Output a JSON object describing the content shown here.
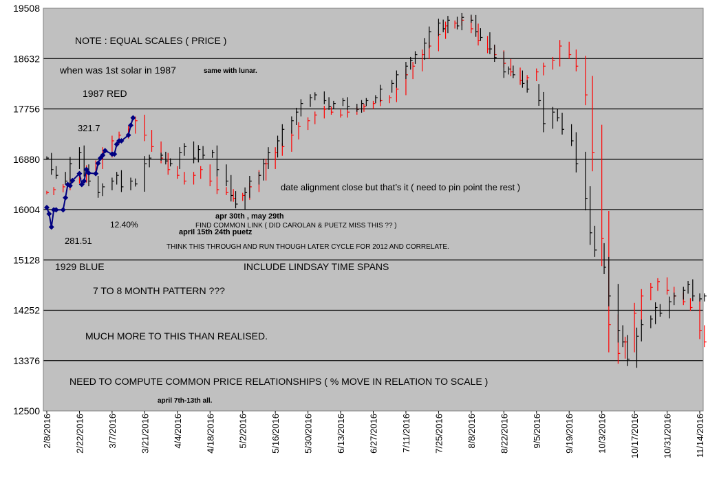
{
  "chart_data": {
    "type": "line",
    "title": "",
    "xlabel": "",
    "ylabel": "",
    "ylim": [
      12500,
      19508
    ],
    "grid": true,
    "yticks": [
      12500,
      13376,
      14252,
      15128,
      16004,
      16880,
      17756,
      18632,
      19508
    ],
    "xticks": [
      "2/8/2016",
      "2/22/2016",
      "3/7/2016",
      "3/21/2016",
      "4/4/2016",
      "4/18/2016",
      "5/2/2016",
      "5/16/2016",
      "5/30/2016",
      "6/13/2016",
      "6/27/2016",
      "7/11/2016",
      "7/25/2016",
      "8/8/2016",
      "8/22/2016",
      "9/5/2016",
      "9/19/2016",
      "10/3/2016",
      "10/17/2016",
      "10/31/2016",
      "11/14/2016"
    ],
    "colors": {
      "plot_bg": "#c0c0c0",
      "grid": "#000000",
      "black_series": "#000000",
      "red_series": "#ff0000",
      "blue_series": "#000080"
    },
    "series": [
      {
        "name": "1929 BLUE",
        "color": "#000080",
        "marker": "diamond",
        "x": [
          "2/8/2016",
          "2/9/2016",
          "2/10/2016",
          "2/11/2016",
          "2/12/2016",
          "2/15/2016",
          "2/16/2016",
          "2/17/2016",
          "2/18/2016",
          "2/19/2016",
          "2/22/2016",
          "2/23/2016",
          "2/24/2016",
          "2/25/2016",
          "2/26/2016",
          "2/29/2016",
          "3/1/2016",
          "3/2/2016",
          "3/3/2016",
          "3/4/2016",
          "3/7/2016",
          "3/8/2016",
          "3/9/2016",
          "3/10/2016",
          "3/11/2016",
          "3/14/2016",
          "3/15/2016",
          "3/16/2016"
        ],
        "values": [
          16040,
          15930,
          15700,
          16000,
          16000,
          16000,
          16210,
          16440,
          16420,
          16510,
          16630,
          16440,
          16500,
          16700,
          16640,
          16630,
          16810,
          16900,
          16950,
          17030,
          16970,
          16970,
          17140,
          17200,
          17200,
          17300,
          17470,
          17600
        ]
      },
      {
        "name": "",
        "color": "#000000",
        "style": "hlc-bars",
        "x": [
          "2/8/2016",
          "2/10/2016",
          "2/12/2016",
          "2/16/2016",
          "2/18/2016",
          "2/22/2016",
          "2/24/2016",
          "2/26/2016",
          "3/1/2016",
          "3/3/2016",
          "3/7/2016",
          "3/9/2016",
          "3/11/2016",
          "3/15/2016",
          "3/17/2016",
          "3/21/2016",
          "3/23/2016",
          "3/28/2016",
          "3/30/2016",
          "4/1/2016",
          "4/5/2016",
          "4/7/2016",
          "4/11/2016",
          "4/13/2016",
          "4/15/2016",
          "4/19/2016",
          "4/21/2016",
          "4/25/2016",
          "4/27/2016",
          "4/29/2016",
          "5/3/2016",
          "5/5/2016",
          "5/9/2016",
          "5/11/2016",
          "5/13/2016",
          "5/17/2016",
          "5/19/2016",
          "5/23/2016",
          "5/25/2016",
          "5/27/2016",
          "5/31/2016",
          "6/2/2016",
          "6/6/2016",
          "6/8/2016",
          "6/10/2016",
          "6/14/2016",
          "6/16/2016",
          "6/20/2016",
          "6/22/2016",
          "6/24/2016",
          "6/28/2016",
          "6/30/2016",
          "7/5/2016",
          "7/7/2016",
          "7/11/2016",
          "7/13/2016",
          "7/15/2016",
          "7/19/2016",
          "7/21/2016",
          "7/25/2016",
          "7/27/2016",
          "7/29/2016",
          "8/2/2016",
          "8/4/2016",
          "8/8/2016",
          "8/10/2016",
          "8/12/2016",
          "8/16/2016",
          "8/18/2016",
          "8/22/2016",
          "8/24/2016",
          "8/26/2016",
          "8/30/2016",
          "9/1/2016",
          "9/6/2016",
          "9/8/2016",
          "9/12/2016",
          "9/14/2016",
          "9/16/2016",
          "9/20/2016",
          "9/22/2016",
          "9/26/2016",
          "9/28/2016",
          "9/30/2016",
          "10/4/2016",
          "10/6/2016",
          "10/10/2016",
          "10/12/2016",
          "10/14/2016",
          "10/18/2016",
          "10/20/2016",
          "10/24/2016",
          "10/26/2016",
          "10/28/2016",
          "11/1/2016",
          "11/3/2016",
          "11/7/2016",
          "11/9/2016",
          "11/11/2016",
          "11/14/2016",
          "11/16/2016"
        ],
        "values": [
          16900,
          16700,
          16600,
          16500,
          16800,
          17000,
          16700,
          16500,
          16300,
          16400,
          16500,
          16600,
          16400,
          16500,
          16450,
          16800,
          16900,
          16950,
          16850,
          16800,
          17000,
          17100,
          16900,
          17050,
          16950,
          17000,
          16700,
          16500,
          16250,
          16100,
          16300,
          16500,
          16600,
          16800,
          17000,
          17200,
          17400,
          17550,
          17700,
          17850,
          17950,
          18000,
          17900,
          17800,
          17850,
          17900,
          17800,
          17750,
          17850,
          17900,
          17950,
          18100,
          18200,
          18350,
          18500,
          18600,
          18700,
          18900,
          19100,
          19250,
          19150,
          19300,
          19200,
          19350,
          19300,
          19100,
          19000,
          18800,
          18650,
          18400,
          18450,
          18350,
          18200,
          18100,
          17900,
          17500,
          17700,
          17600,
          17400,
          17200,
          16800,
          16200,
          15600,
          15300,
          15000,
          14500,
          13900,
          13700,
          13400,
          13800,
          14000,
          14100,
          14300,
          14200,
          14400,
          14500,
          14600,
          14700,
          14500,
          14450,
          14500
        ]
      },
      {
        "name": "1987 RED",
        "color": "#ff0000",
        "style": "hlc-bars",
        "x": [
          "2/8/2016",
          "2/11/2016",
          "2/15/2016",
          "2/18/2016",
          "2/22/2016",
          "2/25/2016",
          "2/29/2016",
          "3/3/2016",
          "3/7/2016",
          "3/10/2016",
          "3/14/2016",
          "3/17/2016",
          "3/21/2016",
          "3/24/2016",
          "3/28/2016",
          "3/31/2016",
          "4/4/2016",
          "4/7/2016",
          "4/11/2016",
          "4/14/2016",
          "4/18/2016",
          "4/21/2016",
          "4/25/2016",
          "4/28/2016",
          "5/2/2016",
          "5/5/2016",
          "5/9/2016",
          "5/12/2016",
          "5/16/2016",
          "5/19/2016",
          "5/23/2016",
          "5/26/2016",
          "5/30/2016",
          "6/2/2016",
          "6/6/2016",
          "6/9/2016",
          "6/13/2016",
          "6/16/2016",
          "6/20/2016",
          "6/23/2016",
          "6/27/2016",
          "6/30/2016",
          "7/4/2016",
          "7/7/2016",
          "7/11/2016",
          "7/14/2016",
          "7/18/2016",
          "7/21/2016",
          "7/25/2016",
          "7/28/2016",
          "8/1/2016",
          "8/4/2016",
          "8/8/2016",
          "8/11/2016",
          "8/15/2016",
          "8/18/2016",
          "8/22/2016",
          "8/25/2016",
          "8/29/2016",
          "9/1/2016",
          "9/5/2016",
          "9/8/2016",
          "9/12/2016",
          "9/15/2016",
          "9/19/2016",
          "9/22/2016",
          "9/26/2016",
          "9/29/2016",
          "10/3/2016",
          "10/6/2016",
          "10/10/2016",
          "10/13/2016",
          "10/17/2016",
          "10/20/2016",
          "10/24/2016",
          "10/27/2016",
          "10/31/2016",
          "11/3/2016",
          "11/7/2016",
          "11/10/2016",
          "11/14/2016",
          "11/16/2016"
        ],
        "values": [
          16300,
          16350,
          16400,
          16500,
          16550,
          16700,
          16800,
          17000,
          17200,
          17300,
          17400,
          17550,
          17300,
          17100,
          16900,
          16700,
          16600,
          16500,
          16600,
          16700,
          16500,
          16350,
          16300,
          16200,
          16250,
          16400,
          16600,
          16800,
          17000,
          17100,
          17300,
          17450,
          17550,
          17650,
          17750,
          17700,
          17650,
          17700,
          17750,
          17800,
          17850,
          17900,
          17950,
          18100,
          18350,
          18500,
          18700,
          18850,
          19050,
          19200,
          19250,
          19300,
          19150,
          18950,
          18800,
          18700,
          18550,
          18400,
          18250,
          18300,
          18400,
          18500,
          18600,
          18850,
          18700,
          18500,
          18000,
          17000,
          15500,
          14000,
          13500,
          13700,
          14200,
          14500,
          14650,
          14750,
          14600,
          14500,
          14400,
          14300,
          13900,
          13700
        ]
      }
    ],
    "annotations": [
      "NOTE : EQUAL SCALES ( PRICE )",
      "when was 1st solar in 1987",
      "same with lunar.",
      "1987 RED",
      "321.7",
      "date alignment close but that’s it ( need to pin point the rest )",
      "apr 30th , may 29th",
      "FIND COMMON LINK ( DID CAROLAN & PUETZ  MISS THIS ?? )",
      "12.40%",
      "april 15th 24th puetz",
      "281.51",
      "THINK THIS THROUGH AND RUN THOUGH LATER CYCLE FOR 2012 AND CORRELATE.",
      "1929 BLUE",
      "INCLUDE LINDSAY TIME SPANS",
      "7 TO 8 MONTH PATTERN ???",
      "MUCH MORE TO THIS THAN REALISED.",
      "NEED TO COMPUTE COMMON PRICE RELATIONSHIPS ( % MOVE IN RELATION TO SCALE )",
      "april 7th-13th all."
    ]
  }
}
